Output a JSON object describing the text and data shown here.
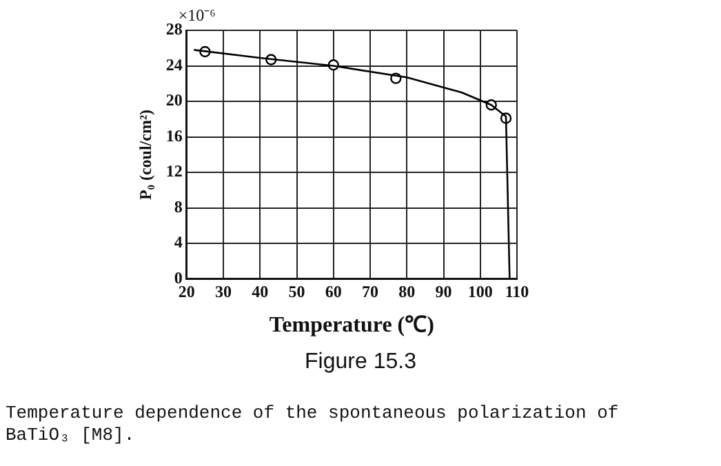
{
  "chart_data": {
    "type": "line",
    "title": "Figure 15.3",
    "xlabel": "Temperature (℃)",
    "ylabel": "P₀ (coul/cm²)",
    "annotations": [
      "×10⁻⁶",
      "Temperature dependence of the spontaneous polarization of BaTiO₃ [M8]."
    ],
    "series": [
      {
        "color": "#000000",
        "x": [
          22,
          40,
          60,
          80,
          95,
          103,
          107,
          108
        ],
        "values": [
          25.8,
          24.9,
          24.0,
          22.7,
          21.0,
          19.6,
          18.3,
          0
        ],
        "marker": "none"
      },
      {
        "type": "scatter",
        "color": "#000000",
        "x": [
          25,
          43,
          60,
          77,
          103,
          107
        ],
        "values": [
          25.6,
          24.7,
          24.1,
          22.6,
          19.6,
          18.1
        ],
        "marker": "circle"
      }
    ],
    "xlim": [
      20,
      110
    ],
    "xticks": [
      20,
      30,
      40,
      50,
      60,
      70,
      80,
      90,
      100,
      110
    ],
    "ylim": [
      0,
      28
    ],
    "yticks": [
      0,
      4,
      8,
      12,
      16,
      20,
      24,
      28
    ],
    "grid": true,
    "legend": false
  }
}
